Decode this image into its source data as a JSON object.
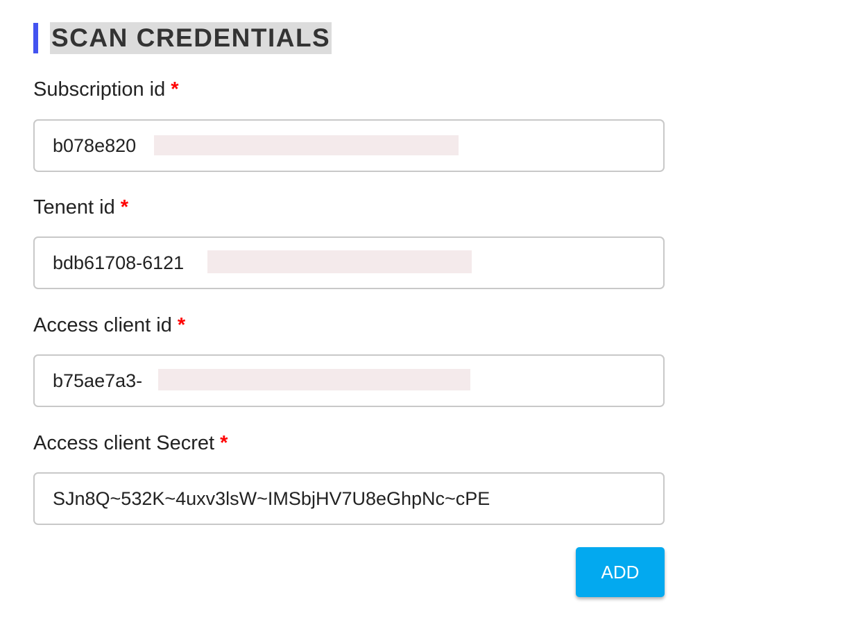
{
  "section": {
    "title": "SCAN CREDENTIALS",
    "accent_color": "#4353f0"
  },
  "fields": [
    {
      "label": "Subscription id",
      "required_marker": "*",
      "value": "b078e820"
    },
    {
      "label": "Tenent id",
      "required_marker": "*",
      "value": "bdb61708-6121"
    },
    {
      "label": "Access client id",
      "required_marker": "*",
      "value": "b75ae7a3-"
    },
    {
      "label": "Access client Secret",
      "required_marker": "*",
      "value": "SJn8Q~532K~4uxv3lsW~IMSbjHV7U8eGhpNc~cPE"
    }
  ],
  "actions": {
    "add_label": "ADD",
    "add_color": "#03a9ef"
  }
}
